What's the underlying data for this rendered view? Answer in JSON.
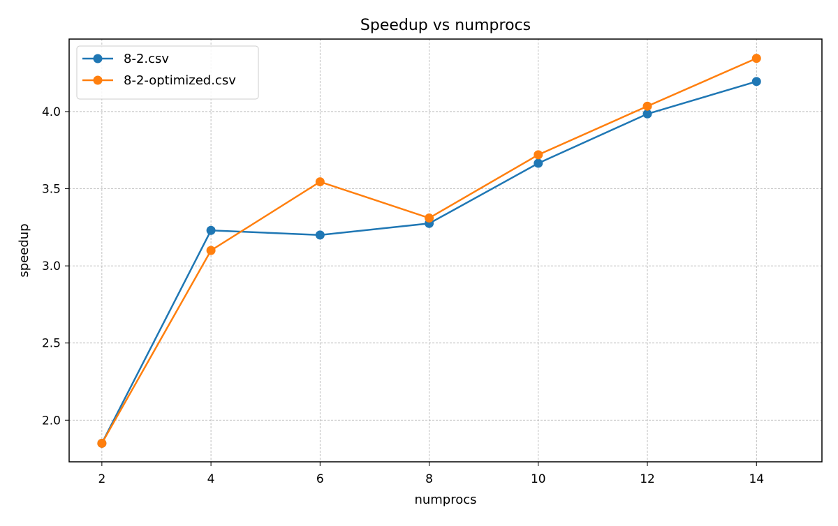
{
  "chart_data": {
    "type": "line",
    "title": "Speedup vs numprocs",
    "xlabel": "numprocs",
    "ylabel": "speedup",
    "x": [
      2,
      4,
      6,
      8,
      10,
      12,
      14
    ],
    "xlim": [
      1.4,
      15.2
    ],
    "ylim": [
      1.73,
      4.47
    ],
    "xticks": [
      2,
      4,
      6,
      8,
      10,
      12,
      14
    ],
    "yticks": [
      2.0,
      2.5,
      3.0,
      3.5,
      4.0
    ],
    "ytick_labels": [
      "2.0",
      "2.5",
      "3.0",
      "3.5",
      "4.0"
    ],
    "grid": true,
    "legend_position": "top-left",
    "series": [
      {
        "name": "8-2.csv",
        "color": "#1f77b4",
        "marker": "circle",
        "values": [
          1.85,
          3.23,
          3.2,
          3.275,
          3.665,
          3.985,
          4.195
        ]
      },
      {
        "name": "8-2-optimized.csv",
        "color": "#ff7f0e",
        "marker": "circle",
        "values": [
          1.85,
          3.1,
          3.545,
          3.31,
          3.72,
          4.035,
          4.345
        ]
      }
    ]
  }
}
